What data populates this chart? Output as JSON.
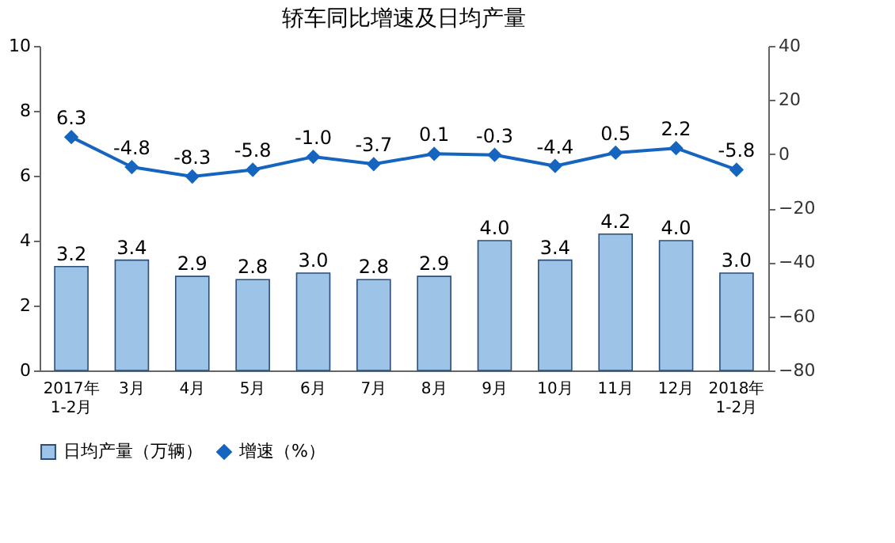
{
  "chart_data": {
    "type": "bar",
    "title": "轿车同比增速及日均产量",
    "categories": [
      "2017年\n1-2月",
      "3月",
      "4月",
      "5月",
      "6月",
      "7月",
      "8月",
      "9月",
      "10月",
      "11月",
      "12月",
      "2018年\n1-2月"
    ],
    "series": [
      {
        "name": "日均产量（万辆）",
        "color": "#9dc3e6",
        "values": [
          3.2,
          3.4,
          2.9,
          2.8,
          3.0,
          2.8,
          2.9,
          4.0,
          3.4,
          4.2,
          4.0,
          3.0
        ],
        "value_labels": [
          "3.2",
          "3.4",
          "2.9",
          "2.8",
          "3.0",
          "2.8",
          "2.9",
          "4.0",
          "3.4",
          "4.2",
          "4.0",
          "3.0"
        ]
      },
      {
        "name": "增速（%）",
        "type": "line",
        "axis": "y2",
        "color": "#1565c0",
        "marker": "diamond",
        "values": [
          6.3,
          -4.8,
          -8.3,
          -5.8,
          -1.0,
          -3.7,
          0.1,
          -0.3,
          -4.4,
          0.5,
          2.2,
          -5.8
        ],
        "value_labels": [
          "6.3",
          "-4.8",
          "-8.3",
          "-5.8",
          "-1.0",
          "-3.7",
          "0.1",
          "-0.3",
          "-4.4",
          "0.5",
          "2.2",
          "-5.8"
        ]
      }
    ],
    "ylim": [
      0,
      10
    ],
    "yticks": [
      0,
      2,
      4,
      6,
      8,
      10
    ],
    "y2lim": [
      -80,
      40
    ],
    "y2ticks": [
      -80,
      -60,
      -40,
      -20,
      0,
      20,
      40
    ],
    "grid": false,
    "legend": "bottom"
  }
}
